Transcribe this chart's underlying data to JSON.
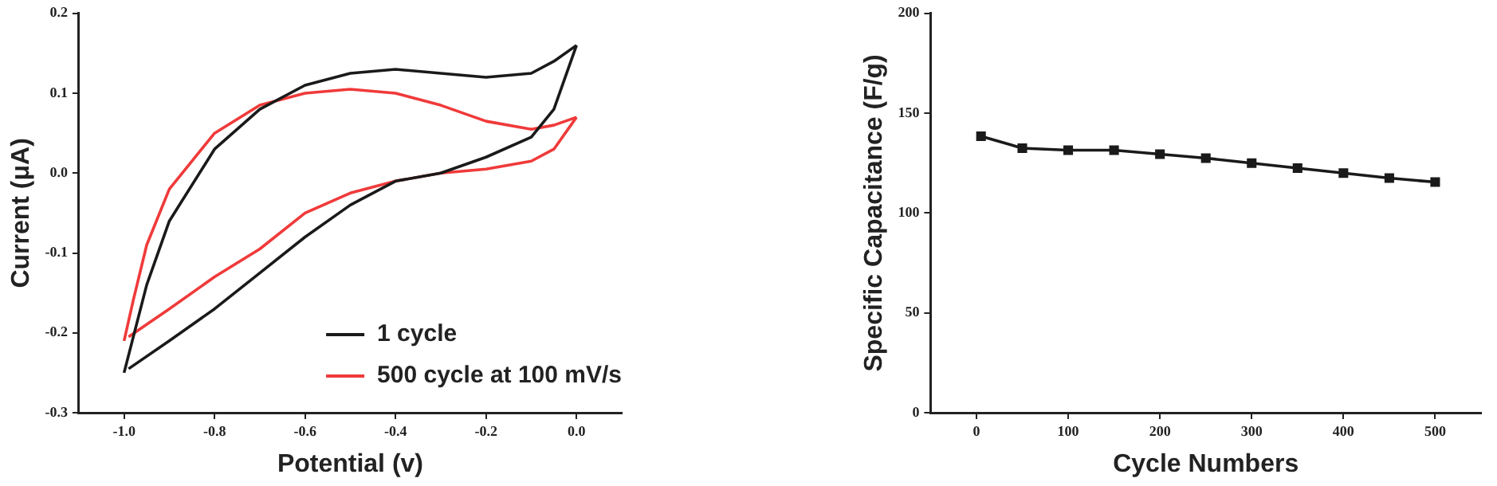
{
  "chart_data": [
    {
      "type": "line",
      "xlabel": "Potential (v)",
      "ylabel": "Current (μA)",
      "xlim": [
        -1.1,
        0.1
      ],
      "xticks": [
        {
          "value": -1.0,
          "label": "-1.0"
        },
        {
          "value": -0.8,
          "label": "-0.8"
        },
        {
          "value": -0.6,
          "label": "-0.6"
        },
        {
          "value": -0.4,
          "label": "-0.4"
        },
        {
          "value": -0.2,
          "label": "-0.2"
        },
        {
          "value": 0.0,
          "label": "0.0"
        }
      ],
      "ylim": [
        -0.3,
        0.2
      ],
      "yticks": [
        {
          "value": -0.3,
          "label": "-0.3"
        },
        {
          "value": -0.2,
          "label": "-0.2"
        },
        {
          "value": -0.1,
          "label": "-0.1"
        },
        {
          "value": 0.0,
          "label": "0.0"
        },
        {
          "value": 0.1,
          "label": "0.1"
        },
        {
          "value": 0.2,
          "label": "0.2"
        }
      ],
      "grid": false,
      "legend": "bottom right",
      "marker": "none",
      "series": [
        {
          "name": "1 cycle",
          "color": "#1a1a1a",
          "x": [
            0,
            -0.05,
            -0.1,
            -0.2,
            -0.3,
            -0.4,
            -0.5,
            -0.6,
            -0.7,
            -0.8,
            -0.9,
            -0.95,
            -1.0
          ],
          "values": [
            0.16,
            0.14,
            0.125,
            0.12,
            0.125,
            0.13,
            0.125,
            0.11,
            0.08,
            0.03,
            -0.06,
            -0.14,
            -0.25
          ]
        },
        {
          "color": "#1a1a1a",
          "x": [
            -0.99,
            -0.9,
            -0.8,
            -0.7,
            -0.6,
            -0.5,
            -0.4,
            -0.3,
            -0.2,
            -0.1,
            -0.05,
            0
          ],
          "values": [
            -0.245,
            -0.21,
            -0.17,
            -0.125,
            -0.08,
            -0.04,
            -0.01,
            0.0,
            0.02,
            0.045,
            0.08,
            0.16
          ]
        },
        {
          "name": "500 cycle at 100 mV/s",
          "color": "#f03a3a",
          "x": [
            0,
            -0.05,
            -0.1,
            -0.2,
            -0.3,
            -0.4,
            -0.5,
            -0.6,
            -0.7,
            -0.8,
            -0.9,
            -0.95,
            -0.98,
            -1.0
          ],
          "values": [
            0.07,
            0.06,
            0.055,
            0.065,
            0.085,
            0.1,
            0.105,
            0.1,
            0.085,
            0.05,
            -0.02,
            -0.09,
            -0.16,
            -0.21
          ]
        },
        {
          "color": "#f03a3a",
          "x": [
            -0.99,
            -0.9,
            -0.8,
            -0.7,
            -0.6,
            -0.5,
            -0.4,
            -0.3,
            -0.2,
            -0.1,
            -0.05,
            0
          ],
          "values": [
            -0.205,
            -0.17,
            -0.13,
            -0.095,
            -0.05,
            -0.025,
            -0.01,
            0.0,
            0.005,
            0.015,
            0.03,
            0.07
          ]
        }
      ]
    },
    {
      "type": "line",
      "xlabel": "Cycle Numbers",
      "ylabel": "Specific Capacitance (F/g)",
      "xlim": [
        -50,
        550
      ],
      "xticks": [
        0,
        100,
        200,
        300,
        400,
        500
      ],
      "ylim": [
        0,
        200
      ],
      "yticks": [
        0,
        50,
        100,
        150,
        200
      ],
      "grid": false,
      "marker": "square",
      "series": [
        {
          "color": "#1a1a1a",
          "x": [
            5,
            50,
            100,
            150,
            200,
            250,
            300,
            350,
            400,
            450,
            500
          ],
          "values": [
            138.5,
            132.5,
            131.5,
            131.5,
            129.5,
            127.5,
            125,
            122.5,
            120,
            117.5,
            115.5
          ]
        }
      ]
    }
  ]
}
